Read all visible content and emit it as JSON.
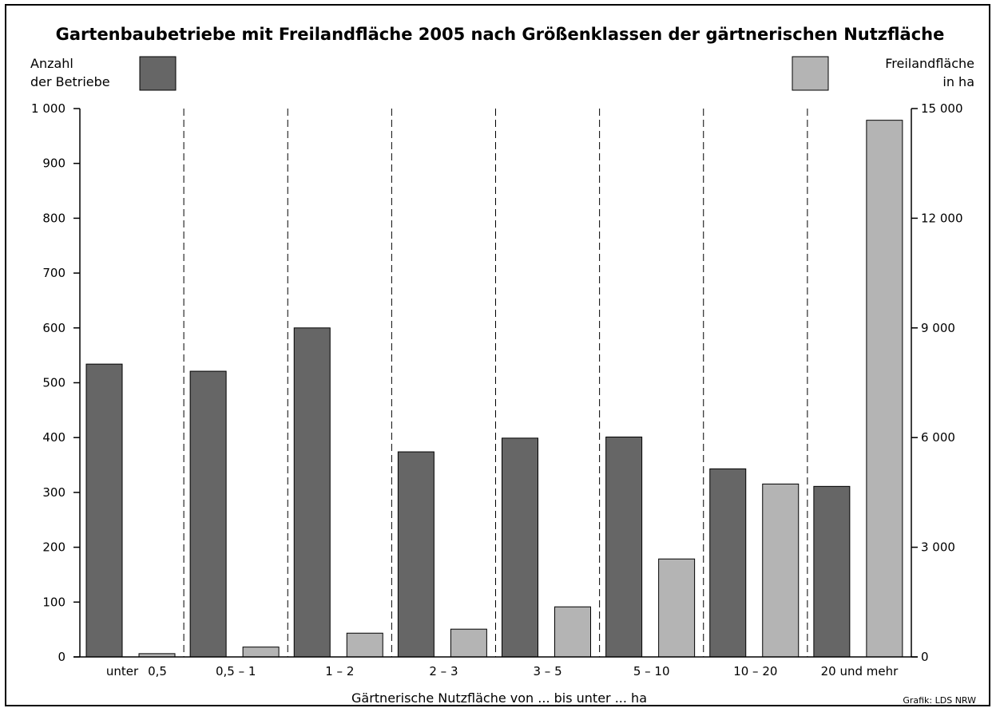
{
  "colors": {
    "dark": "#666666",
    "light": "#b4b4b4",
    "axis": "#000000"
  },
  "chart_data": {
    "type": "bar",
    "title": "Gartenbaubetriebe mit Freilandfläche 2005 nach Größenklassen der gärtnerischen Nutzfläche",
    "xlabel": "Gärtnerische Nutzfläche von ... bis unter ... ha",
    "categories": [
      [
        "unter",
        "0,5"
      ],
      [
        "0,5 – 1"
      ],
      [
        "1 – 2"
      ],
      [
        "2 – 3"
      ],
      [
        "3 – 5"
      ],
      [
        "5 – 10"
      ],
      [
        "10 – 20"
      ],
      [
        "20 und mehr"
      ]
    ],
    "series": [
      {
        "name": "Anzahl der Betriebe",
        "legend_lines": [
          "Anzahl",
          "der Betriebe"
        ],
        "axis": "left",
        "values": [
          534,
          521,
          600,
          374,
          399,
          401,
          343,
          311
        ]
      },
      {
        "name": "Freilandfläche in ha",
        "legend_lines": [
          "Freilandfläche",
          "in ha"
        ],
        "axis": "right",
        "values": [
          90,
          270,
          650,
          760,
          1370,
          2680,
          4730,
          14680
        ]
      }
    ],
    "y_left": {
      "ylim": [
        0,
        1000
      ],
      "ticks": [
        0,
        100,
        200,
        300,
        400,
        500,
        600,
        700,
        800,
        900,
        1000
      ],
      "tick_labels": [
        "0",
        "100",
        "200",
        "300",
        "400",
        "500",
        "600",
        "700",
        "800",
        "900",
        "1 000"
      ]
    },
    "y_right": {
      "ylim": [
        0,
        15000
      ],
      "ticks": [
        0,
        3000,
        6000,
        9000,
        12000,
        15000
      ],
      "tick_labels": [
        "0",
        "3 000",
        "6 000",
        "9 000",
        "12 000",
        "15 000"
      ]
    },
    "grid": "vertical dashed separators between categories",
    "legend_placement": "top-left and top-right",
    "source": "Grafik: LDS NRW"
  }
}
